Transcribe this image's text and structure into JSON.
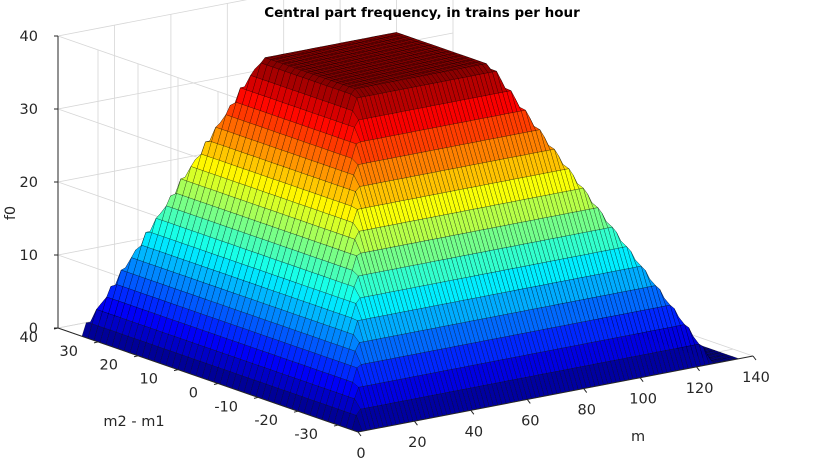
{
  "chart_data": {
    "type": "surface",
    "title": "Central part frequency, in trains per hour",
    "xlabel": "m",
    "ylabel": "m2 - m1",
    "zlabel": "f0",
    "xlim": [
      0,
      140
    ],
    "ylim": [
      -35,
      40
    ],
    "zlim": [
      0,
      40
    ],
    "xticks": [
      0,
      20,
      40,
      60,
      80,
      100,
      120,
      140
    ],
    "yticks": [
      -30,
      -20,
      -10,
      0,
      10,
      20,
      30,
      40
    ],
    "zticks": [
      0,
      10,
      20,
      30,
      40
    ],
    "colormap": "jet",
    "grid": true,
    "surface": {
      "m_range": [
        0,
        135
      ],
      "d_range": [
        -35,
        35
      ],
      "plateau_value": 40,
      "plateau_m": [
        32,
        80
      ],
      "plateau_abs_d_max": 12,
      "zero_from_m": 127,
      "zero_abs_d_from": 35,
      "sample_points": [
        {
          "m": 0,
          "d": 0,
          "f0": 0
        },
        {
          "m": 16,
          "d": 0,
          "f0": 20
        },
        {
          "m": 32,
          "d": 0,
          "f0": 40
        },
        {
          "m": 56,
          "d": 0,
          "f0": 40
        },
        {
          "m": 80,
          "d": 0,
          "f0": 40
        },
        {
          "m": 103,
          "d": 0,
          "f0": 20
        },
        {
          "m": 127,
          "d": 0,
          "f0": 0
        },
        {
          "m": 56,
          "d": 24,
          "f0": 20
        },
        {
          "m": 56,
          "d": 35,
          "f0": 0
        }
      ]
    }
  }
}
